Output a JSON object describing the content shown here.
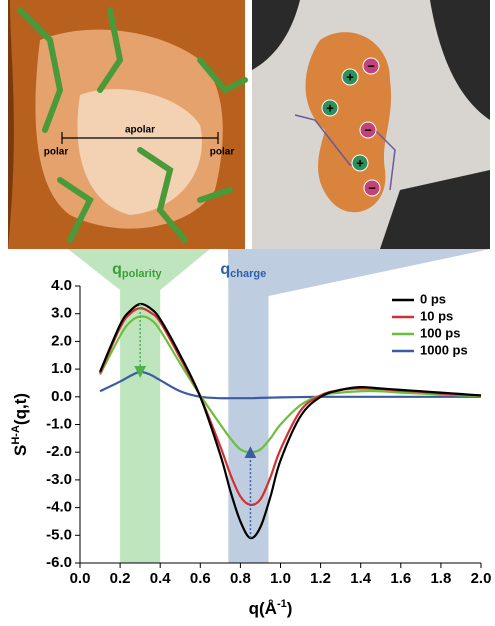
{
  "chart_data": {
    "type": "line",
    "x": [
      0.1,
      0.2,
      0.25,
      0.3,
      0.35,
      0.4,
      0.5,
      0.6,
      0.7,
      0.75,
      0.8,
      0.85,
      0.9,
      0.95,
      1.0,
      1.1,
      1.2,
      1.3,
      1.4,
      1.5,
      1.6,
      1.7,
      1.8,
      1.9,
      2.0
    ],
    "series": [
      {
        "name": "0 ps",
        "color": "#000000",
        "values": [
          0.9,
          2.6,
          3.1,
          3.35,
          3.2,
          2.8,
          1.5,
          0.0,
          -2.1,
          -3.4,
          -4.5,
          -5.1,
          -4.7,
          -3.6,
          -2.3,
          -0.7,
          0.0,
          0.25,
          0.35,
          0.3,
          0.25,
          0.2,
          0.15,
          0.1,
          0.05
        ]
      },
      {
        "name": "10 ps",
        "color": "#d62e2e",
        "values": [
          0.85,
          2.5,
          3.0,
          3.2,
          3.05,
          2.7,
          1.4,
          0.0,
          -1.8,
          -2.8,
          -3.6,
          -3.9,
          -3.7,
          -2.9,
          -1.9,
          -0.5,
          0.05,
          0.25,
          0.3,
          0.28,
          0.22,
          0.18,
          0.12,
          0.08,
          0.05
        ]
      },
      {
        "name": "100 ps",
        "color": "#6cbf3c",
        "values": [
          0.8,
          2.2,
          2.7,
          2.9,
          2.8,
          2.4,
          1.2,
          0.05,
          -1.0,
          -1.5,
          -1.9,
          -2.0,
          -1.9,
          -1.5,
          -1.0,
          -0.3,
          0.05,
          0.15,
          0.2,
          0.2,
          0.15,
          0.12,
          0.08,
          0.05,
          0.03
        ]
      },
      {
        "name": "1000 ps",
        "color": "#3b5ba5",
        "values": [
          0.2,
          0.55,
          0.75,
          0.9,
          0.8,
          0.6,
          0.2,
          0.0,
          -0.05,
          -0.05,
          -0.05,
          -0.05,
          -0.04,
          -0.03,
          -0.02,
          -0.01,
          0,
          0,
          0,
          0,
          0,
          0,
          0,
          0,
          0
        ]
      }
    ],
    "xlim": [
      0,
      2.0
    ],
    "ylim": [
      -6.0,
      4.0
    ],
    "xticks": [
      {
        "value": 0,
        "label": "0.0"
      },
      0.2,
      0.4,
      0.6,
      0.8,
      {
        "value": 1,
        "label": "1.0"
      },
      1.2,
      1.4,
      1.6,
      1.8,
      {
        "value": 2,
        "label": "2.0"
      }
    ],
    "yticks": [
      {
        "value": -6,
        "label": "-6.0"
      },
      {
        "value": -5,
        "label": "-5.0"
      },
      {
        "value": -4,
        "label": "-4.0"
      },
      {
        "value": -3,
        "label": "-3.0"
      },
      {
        "value": -2,
        "label": "-2.0"
      },
      {
        "value": -1,
        "label": "-1.0"
      },
      {
        "value": 0,
        "label": "0.0"
      },
      {
        "value": 1,
        "label": "1.0"
      },
      {
        "value": 2,
        "label": "2.0"
      },
      {
        "value": 3,
        "label": "3.0"
      },
      {
        "value": 4,
        "label": "4.0"
      }
    ],
    "x_label": {
      "base": "q(Å",
      "sup": "-1",
      "end": ")"
    },
    "y_label": {
      "base": "S",
      "sup": "H-A",
      "end": "(q,t)"
    },
    "legend": "upper right",
    "bands": [
      {
        "base": "q",
        "sub": "polarity",
        "range": [
          0.2,
          0.4
        ],
        "color": "#a8dca8"
      },
      {
        "base": "q",
        "sub": "charge",
        "range": [
          0.74,
          0.94
        ],
        "color": "#a9bcd6"
      }
    ]
  },
  "images": {
    "left": {
      "labels": [
        "apolar",
        "polar",
        "polar"
      ]
    },
    "right": {
      "charges": [
        "+",
        "−",
        "+",
        "−",
        "+",
        "−"
      ]
    }
  }
}
